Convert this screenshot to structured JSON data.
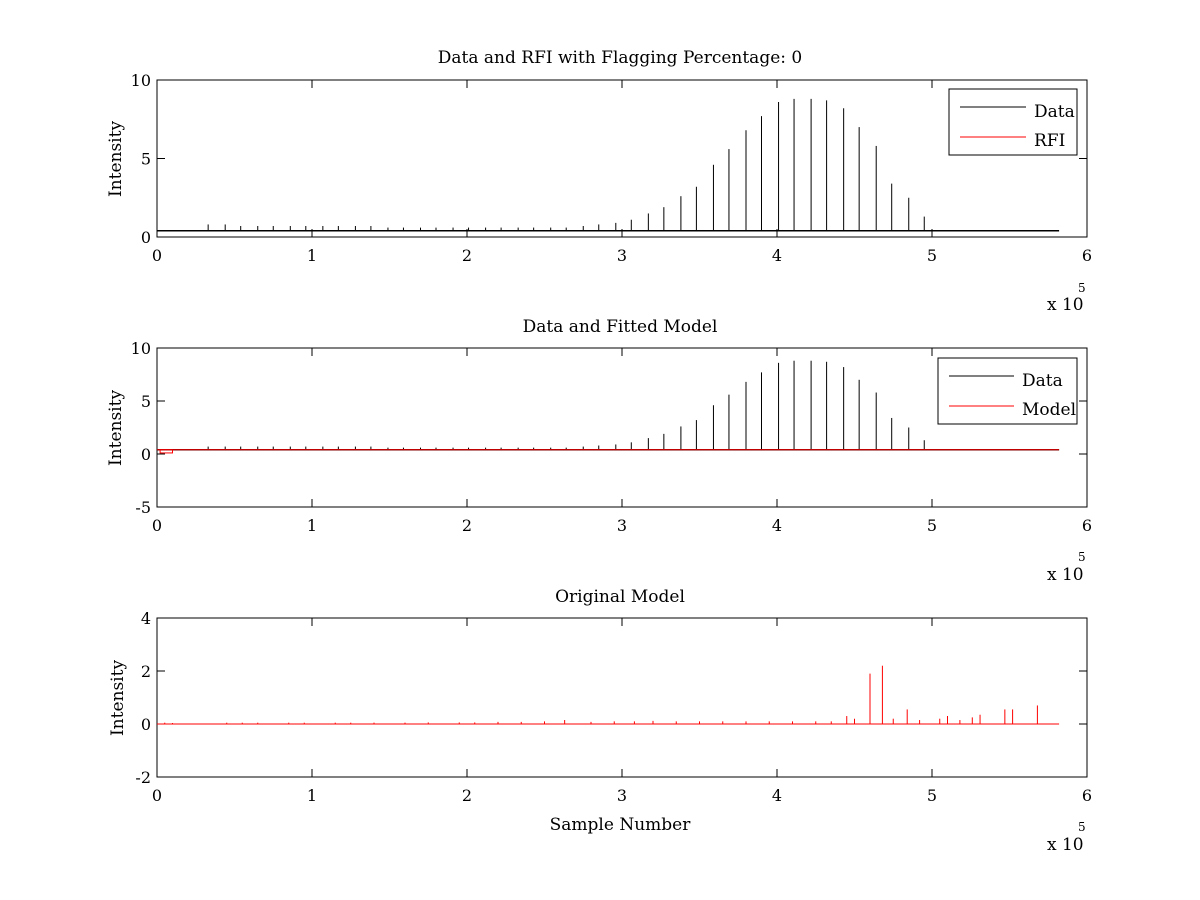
{
  "chart_data": [
    {
      "type": "line",
      "title": "Data and RFI with Flagging Percentage: 0",
      "xlabel": "",
      "ylabel": "Intensity",
      "xlim": [
        0,
        6
      ],
      "ylim": [
        0,
        10
      ],
      "xticks": [
        "0",
        "1",
        "2",
        "3",
        "4",
        "5",
        "6"
      ],
      "yticks": [
        "0",
        "5",
        "10"
      ],
      "x_multiplier": {
        "base": "x 10",
        "exponent": "5"
      },
      "grid": false,
      "legend": {
        "position": "top-right",
        "entries": [
          {
            "name": "Data",
            "color": "#000000"
          },
          {
            "name": "RFI",
            "color": "#ff0000"
          }
        ]
      },
      "baseline": 0.4,
      "x_start": 0,
      "x_end": 5.82,
      "series": [
        {
          "name": "Data",
          "color": "#000000",
          "kind": "spikes",
          "x": [
            0.33,
            0.44,
            0.54,
            0.65,
            0.75,
            0.86,
            0.96,
            1.07,
            1.17,
            1.28,
            1.38,
            1.49,
            1.59,
            1.7,
            1.8,
            1.91,
            2.01,
            2.12,
            2.22,
            2.33,
            2.43,
            2.54,
            2.64,
            2.75,
            2.85,
            2.96,
            3.06,
            3.17,
            3.27,
            3.38,
            3.48,
            3.59,
            3.69,
            3.8,
            3.9,
            4.01,
            4.11,
            4.22,
            4.32,
            4.43,
            4.53,
            4.64,
            4.74,
            4.85,
            4.95
          ],
          "values": [
            0.8,
            0.8,
            0.7,
            0.7,
            0.7,
            0.7,
            0.7,
            0.7,
            0.7,
            0.7,
            0.7,
            0.6,
            0.6,
            0.6,
            0.6,
            0.6,
            0.6,
            0.6,
            0.6,
            0.6,
            0.6,
            0.6,
            0.6,
            0.7,
            0.8,
            0.9,
            1.1,
            1.5,
            1.9,
            2.6,
            3.2,
            4.6,
            5.6,
            6.8,
            7.7,
            8.6,
            8.8,
            8.8,
            8.7,
            8.2,
            7.0,
            5.8,
            3.4,
            2.5,
            1.3
          ]
        }
      ]
    },
    {
      "type": "line",
      "title": "Data and Fitted Model",
      "xlabel": "",
      "ylabel": "Intensity",
      "xlim": [
        0,
        6
      ],
      "ylim": [
        -5,
        10
      ],
      "xticks": [
        "0",
        "1",
        "2",
        "3",
        "4",
        "5",
        "6"
      ],
      "yticks": [
        "-5",
        "0",
        "5",
        "10"
      ],
      "x_multiplier": {
        "base": "x 10",
        "exponent": "5"
      },
      "grid": false,
      "legend": {
        "position": "top-right",
        "entries": [
          {
            "name": "Data",
            "color": "#000000"
          },
          {
            "name": "Model",
            "color": "#ff0000"
          }
        ]
      },
      "baseline": 0.4,
      "x_start": 0,
      "x_end": 5.82,
      "series": [
        {
          "name": "Data",
          "color": "#000000",
          "kind": "spikes",
          "x": [
            0.33,
            0.44,
            0.54,
            0.65,
            0.75,
            0.86,
            0.96,
            1.07,
            1.17,
            1.28,
            1.38,
            1.49,
            1.59,
            1.7,
            1.8,
            1.91,
            2.01,
            2.12,
            2.22,
            2.33,
            2.43,
            2.54,
            2.64,
            2.75,
            2.85,
            2.96,
            3.06,
            3.17,
            3.27,
            3.38,
            3.48,
            3.59,
            3.69,
            3.8,
            3.9,
            4.01,
            4.11,
            4.22,
            4.32,
            4.43,
            4.53,
            4.64,
            4.74,
            4.85,
            4.95
          ],
          "values": [
            0.7,
            0.7,
            0.7,
            0.7,
            0.7,
            0.7,
            0.7,
            0.7,
            0.7,
            0.7,
            0.7,
            0.6,
            0.6,
            0.6,
            0.6,
            0.6,
            0.6,
            0.6,
            0.6,
            0.6,
            0.6,
            0.6,
            0.6,
            0.7,
            0.8,
            0.9,
            1.1,
            1.5,
            1.9,
            2.6,
            3.2,
            4.6,
            5.6,
            6.8,
            7.7,
            8.6,
            8.8,
            8.8,
            8.7,
            8.2,
            7.0,
            5.8,
            3.4,
            2.5,
            1.3
          ]
        },
        {
          "name": "Model",
          "color": "#ff0000",
          "kind": "baseline",
          "value": 0.4
        }
      ]
    },
    {
      "type": "line",
      "title": "Original Model",
      "xlabel": "Sample Number",
      "ylabel": "Intensity",
      "xlim": [
        0,
        6
      ],
      "ylim": [
        -2,
        4
      ],
      "xticks": [
        "0",
        "1",
        "2",
        "3",
        "4",
        "5",
        "6"
      ],
      "yticks": [
        "-2",
        "0",
        "2",
        "4"
      ],
      "x_multiplier": {
        "base": "x 10",
        "exponent": "5"
      },
      "grid": false,
      "baseline": 0,
      "x_start": 0,
      "x_end": 5.82,
      "series": [
        {
          "name": "",
          "color": "#ff0000",
          "kind": "spikes",
          "x": [
            0.05,
            0.1,
            0.45,
            0.55,
            0.65,
            0.85,
            0.95,
            1.15,
            1.25,
            1.4,
            1.6,
            1.75,
            1.95,
            2.05,
            2.2,
            2.35,
            2.5,
            2.63,
            2.8,
            2.95,
            3.08,
            3.2,
            3.35,
            3.5,
            3.65,
            3.8,
            3.95,
            4.1,
            4.25,
            4.35,
            4.45,
            4.5,
            4.6,
            4.68,
            4.75,
            4.84,
            4.92,
            5.05,
            5.1,
            5.18,
            5.26,
            5.31,
            5.47,
            5.52,
            5.68
          ],
          "values": [
            0.05,
            0.04,
            0.05,
            0.05,
            0.05,
            0.05,
            0.05,
            0.05,
            0.05,
            0.05,
            0.05,
            0.06,
            0.06,
            0.06,
            0.08,
            0.08,
            0.1,
            0.15,
            0.08,
            0.1,
            0.1,
            0.12,
            0.1,
            0.1,
            0.1,
            0.1,
            0.1,
            0.1,
            0.1,
            0.1,
            0.3,
            0.2,
            1.9,
            2.2,
            0.2,
            0.55,
            0.15,
            0.2,
            0.3,
            0.15,
            0.25,
            0.35,
            0.55,
            0.55,
            0.7
          ]
        }
      ]
    }
  ]
}
